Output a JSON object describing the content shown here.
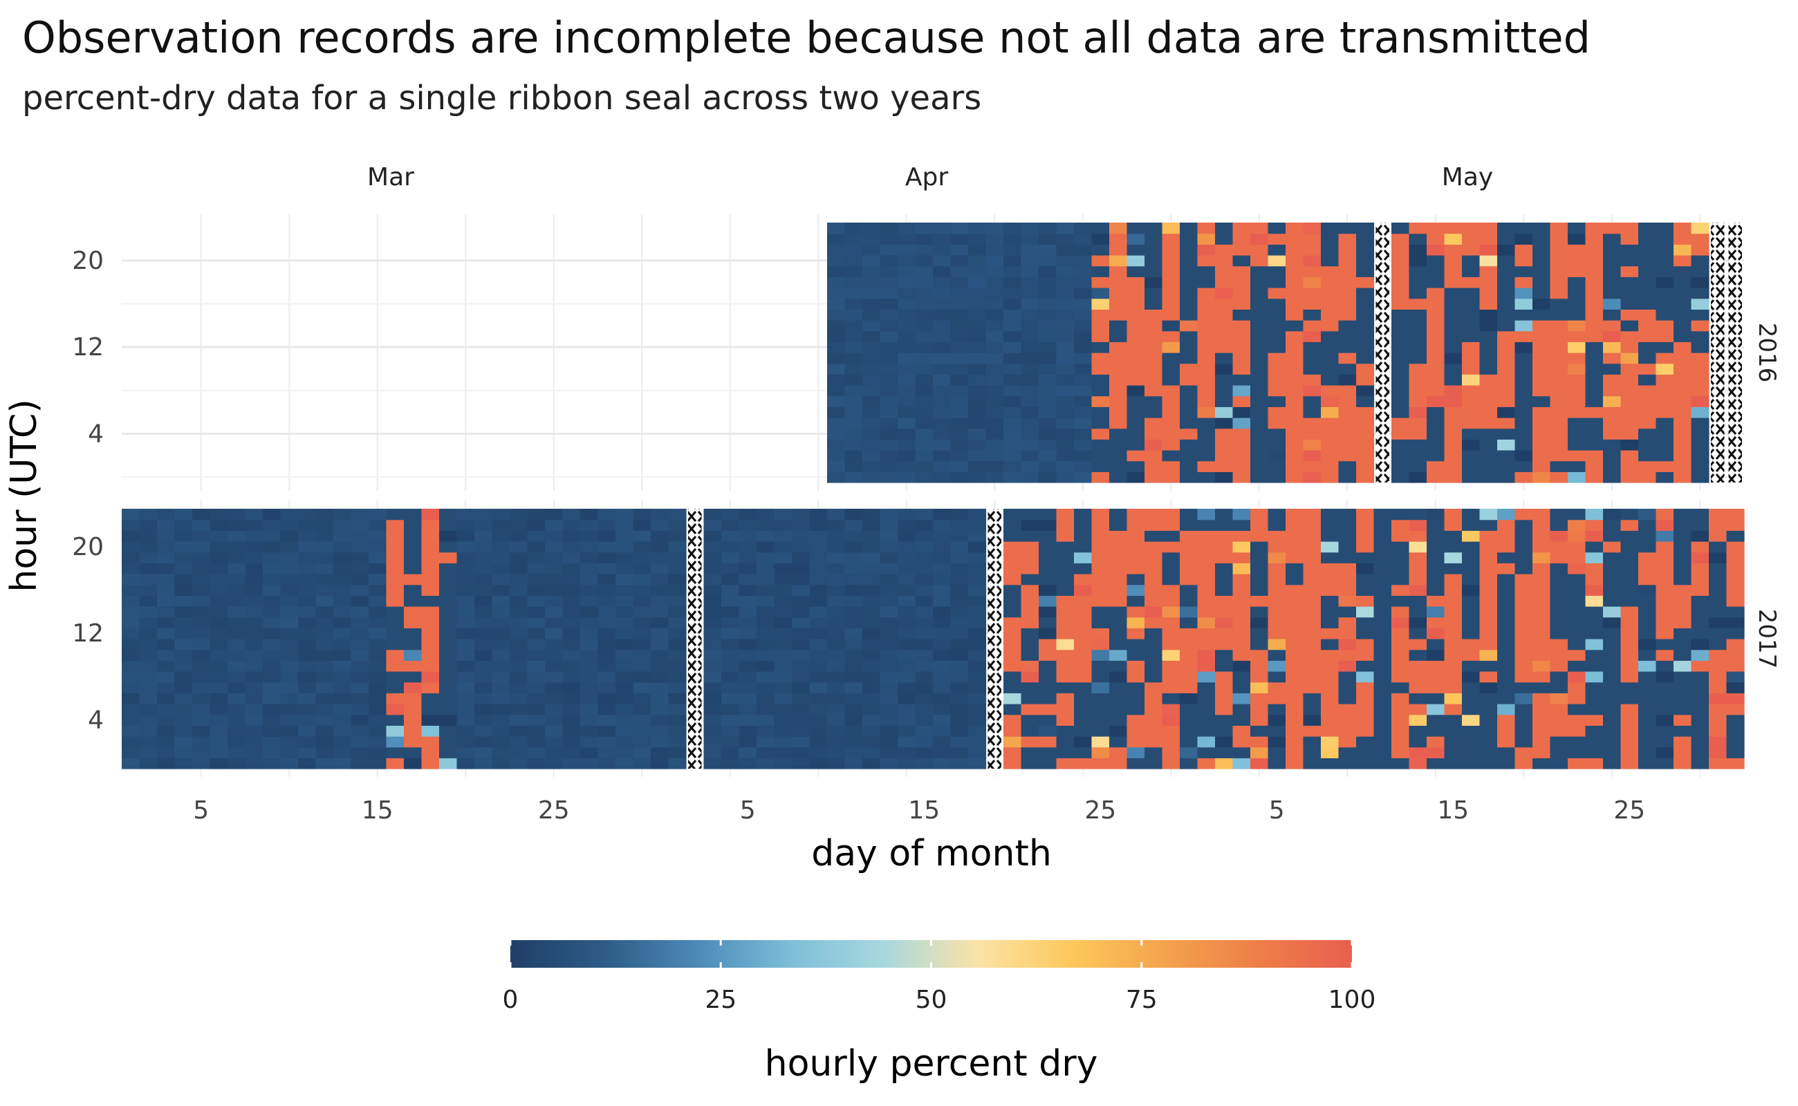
{
  "chart_data": {
    "type": "heatmap",
    "title": "Observation records are incomplete because not all data are transmitted",
    "subtitle": "percent-dry data for a single ribbon seal across two years",
    "xlabel": "day of month",
    "ylabel": "hour (UTC)",
    "legend": {
      "title": "hourly percent dry",
      "placement": "bottom",
      "range": [
        0,
        100
      ],
      "ticks": [
        0,
        25,
        50,
        75,
        100
      ],
      "colors": [
        "#1f3f66",
        "#2e5b86",
        "#4c8ab8",
        "#7dbfd8",
        "#a9d8df",
        "#fbe3a6",
        "#fdc85c",
        "#f4a34c",
        "#ee7e48",
        "#e95f4f"
      ]
    },
    "month_labels": [
      "Mar",
      "Apr",
      "May"
    ],
    "x_tick_labels": [
      "5",
      "15",
      "25",
      "5",
      "15",
      "25",
      "5",
      "15",
      "25"
    ],
    "y_tick_labels": [
      "20",
      "12",
      "4"
    ],
    "y_ticks": [
      20,
      12,
      4
    ],
    "hour_range": [
      0,
      23
    ],
    "panels": [
      {
        "label": "2016",
        "data_start_date": "2016-04-10",
        "data_end_date": "2016-05-31",
        "gaps": [
          "2016-05-11",
          "2016-05-30",
          "2016-05-31"
        ],
        "pattern": [
          {
            "from": "2016-04-10",
            "to": "2016-04-24",
            "value": 5
          },
          {
            "from": "2016-04-25",
            "to": "2016-04-29",
            "value": "mixed"
          },
          {
            "from": "2016-04-30",
            "to": "2016-05-29",
            "value": "mixed"
          }
        ]
      },
      {
        "label": "2017",
        "data_start_date": "2017-03-01",
        "data_end_date": "2017-05-31",
        "gaps": [
          "2017-04-02",
          "2017-04-19"
        ],
        "pattern": [
          {
            "from": "2017-03-01",
            "to": "2017-03-15",
            "value": 4
          },
          {
            "from": "2017-03-16",
            "to": "2017-03-19",
            "value": "mixed"
          },
          {
            "from": "2017-03-20",
            "to": "2017-04-18",
            "value": 4
          },
          {
            "from": "2017-04-20",
            "to": "2017-05-31",
            "value": "mixed"
          }
        ]
      }
    ]
  }
}
